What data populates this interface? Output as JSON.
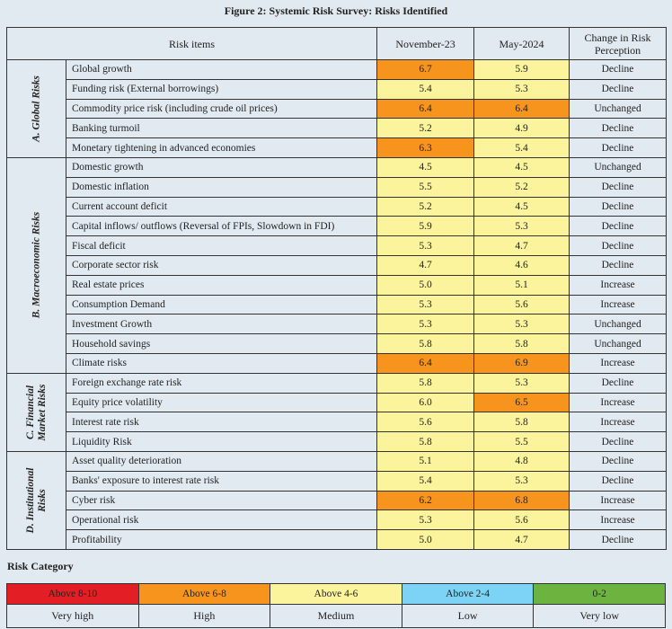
{
  "title": "Figure 2: Systemic Risk Survey: Risks Identified",
  "headers": {
    "items": "Risk items",
    "col1": "November-23",
    "col2": "May-2024",
    "col3": "Change in Risk Perception"
  },
  "colors": {
    "high": "#f7941d",
    "medium": "#fbf49c",
    "very_high": "#e31e24",
    "low": "#7dd3f5",
    "very_low": "#6db33f"
  },
  "groups": [
    {
      "label": "A. Global Risks",
      "rows": [
        [
          "Global growth",
          "6.7",
          "5.9",
          "Decline"
        ],
        [
          "Funding risk (External borrowings)",
          "5.4",
          "5.3",
          "Decline"
        ],
        [
          "Commodity price risk (including crude oil prices)",
          "6.4",
          "6.4",
          "Unchanged"
        ],
        [
          "Banking turmoil",
          "5.2",
          "4.9",
          "Decline"
        ],
        [
          "Monetary tightening in advanced economies",
          "6.3",
          "5.4",
          "Decline"
        ]
      ]
    },
    {
      "label": "B. Macroeconomic Risks",
      "rows": [
        [
          "Domestic growth",
          "4.5",
          "4.5",
          "Unchanged"
        ],
        [
          "Domestic inflation",
          "5.5",
          "5.2",
          "Decline"
        ],
        [
          "Current account deficit",
          "5.2",
          "4.5",
          "Decline"
        ],
        [
          "Capital inflows/ outflows (Reversal of FPIs, Slowdown in FDI)",
          "5.9",
          "5.3",
          "Decline"
        ],
        [
          "Fiscal deficit",
          "5.3",
          "4.7",
          "Decline"
        ],
        [
          "Corporate sector risk",
          "4.7",
          "4.6",
          "Decline"
        ],
        [
          "Real estate prices",
          "5.0",
          "5.1",
          "Increase"
        ],
        [
          "Consumption Demand",
          "5.3",
          "5.6",
          "Increase"
        ],
        [
          "Investment Growth",
          "5.3",
          "5.3",
          "Unchanged"
        ],
        [
          "Household savings",
          "5.8",
          "5.8",
          "Unchanged"
        ],
        [
          "Climate risks",
          "6.4",
          "6.9",
          "Increase"
        ]
      ]
    },
    {
      "label": "C. Financial Market Risks",
      "rows": [
        [
          "Foreign exchange rate risk",
          "5.8",
          "5.3",
          "Decline"
        ],
        [
          "Equity price volatility",
          "6.0",
          "6.5",
          "Increase"
        ],
        [
          "Interest rate risk",
          "5.6",
          "5.8",
          "Increase"
        ],
        [
          "Liquidity Risk",
          "5.8",
          "5.5",
          "Decline"
        ]
      ]
    },
    {
      "label": "D. Institutional Risks",
      "rows": [
        [
          "Asset quality deterioration",
          "5.1",
          "4.8",
          "Decline"
        ],
        [
          "Banks' exposure to interest rate risk",
          "5.4",
          "5.3",
          "Decline"
        ],
        [
          "Cyber risk",
          "6.2",
          "6.8",
          "Increase"
        ],
        [
          "Operational risk",
          "5.3",
          "5.6",
          "Increase"
        ],
        [
          "Profitability",
          "5.0",
          "4.7",
          "Decline"
        ]
      ]
    }
  ],
  "legend": {
    "title": "Risk Category",
    "items": [
      {
        "range": "Above 8-10",
        "label": "Very high",
        "color": "#e31e24"
      },
      {
        "range": "Above 6-8",
        "label": "High",
        "color": "#f7941d"
      },
      {
        "range": "Above 4-6",
        "label": "Medium",
        "color": "#fbf49c"
      },
      {
        "range": "Above 2-4",
        "label": "Low",
        "color": "#7dd3f5"
      },
      {
        "range": "0-2",
        "label": "Very low",
        "color": "#6db33f"
      }
    ]
  }
}
